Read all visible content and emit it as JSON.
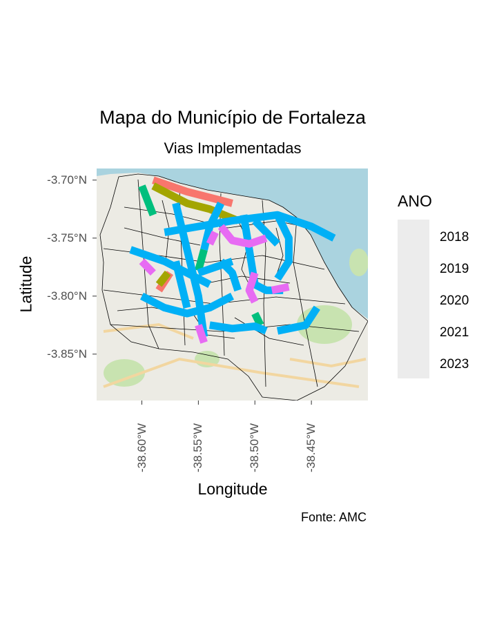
{
  "chart_data": {
    "type": "map",
    "title": "Mapa do Município de Fortaleza",
    "subtitle": "Vias Implementadas",
    "xlabel": "Longitude",
    "ylabel": "Latitude",
    "caption": "Fonte: AMC",
    "x_ticks": [
      "-38.60°W",
      "-38.55°W",
      "-38.50°W",
      "-38.45°W"
    ],
    "y_ticks": [
      "-3.70°N",
      "-3.75°N",
      "-3.80°N",
      "-3.85°N"
    ],
    "xlim": [
      -38.64,
      -38.4
    ],
    "ylim": [
      -3.89,
      -3.69
    ],
    "legend": {
      "title": "ANO",
      "position": "right"
    },
    "series": [
      {
        "name": "2018",
        "color": "#f8766d",
        "segments": [
          [
            [
              -38.59,
              -3.7
            ],
            [
              -38.56,
              -3.71
            ],
            [
              -38.52,
              -3.72
            ]
          ],
          [
            [
              -38.585,
              -3.795
            ],
            [
              -38.575,
              -3.78
            ]
          ]
        ]
      },
      {
        "name": "2019",
        "color": "#a3a500",
        "segments": [
          [
            [
              -38.59,
              -3.705
            ],
            [
              -38.56,
              -3.72
            ],
            [
              -38.54,
              -3.725
            ],
            [
              -38.515,
              -3.735
            ]
          ],
          [
            [
              -38.585,
              -3.79
            ],
            [
              -38.577,
              -3.78
            ]
          ]
        ]
      },
      {
        "name": "2020",
        "color": "#00bf7d",
        "segments": [
          [
            [
              -38.6,
              -3.705
            ],
            [
              -38.59,
              -3.73
            ]
          ],
          [
            [
              -38.55,
              -3.778
            ],
            [
              -38.545,
              -3.76
            ]
          ],
          [
            [
              -38.5,
              -3.815
            ],
            [
              -38.495,
              -3.825
            ]
          ]
        ]
      },
      {
        "name": "2021",
        "color": "#00b0f6",
        "segments": [
          [
            [
              -38.58,
              -3.745
            ],
            [
              -38.55,
              -3.74
            ],
            [
              -38.52,
              -3.735
            ],
            [
              -38.48,
              -3.73
            ],
            [
              -38.45,
              -3.74
            ],
            [
              -38.43,
              -3.75
            ]
          ],
          [
            [
              -38.57,
              -3.72
            ],
            [
              -38.56,
              -3.76
            ],
            [
              -38.55,
              -3.8
            ],
            [
              -38.545,
              -3.835
            ]
          ],
          [
            [
              -38.53,
              -3.72
            ],
            [
              -38.54,
              -3.74
            ],
            [
              -38.545,
              -3.76
            ]
          ],
          [
            [
              -38.51,
              -3.73
            ],
            [
              -38.505,
              -3.76
            ],
            [
              -38.5,
              -3.79
            ]
          ],
          [
            [
              -38.48,
              -3.73
            ],
            [
              -38.47,
              -3.75
            ],
            [
              -38.47,
              -3.77
            ],
            [
              -38.48,
              -3.785
            ]
          ],
          [
            [
              -38.61,
              -3.76
            ],
            [
              -38.58,
              -3.77
            ],
            [
              -38.56,
              -3.78
            ],
            [
              -38.54,
              -3.79
            ]
          ],
          [
            [
              -38.6,
              -3.8
            ],
            [
              -38.58,
              -3.81
            ],
            [
              -38.56,
              -3.815
            ],
            [
              -38.54,
              -3.81
            ],
            [
              -38.52,
              -3.8
            ]
          ],
          [
            [
              -38.54,
              -3.825
            ],
            [
              -38.52,
              -3.828
            ],
            [
              -38.5,
              -3.826
            ],
            [
              -38.49,
              -3.83
            ]
          ],
          [
            [
              -38.48,
              -3.83
            ],
            [
              -38.455,
              -3.825
            ],
            [
              -38.445,
              -3.81
            ]
          ],
          [
            [
              -38.53,
              -3.77
            ],
            [
              -38.52,
              -3.78
            ],
            [
              -38.515,
              -3.795
            ]
          ],
          [
            [
              -38.57,
              -3.77
            ],
            [
              -38.565,
              -3.79
            ],
            [
              -38.56,
              -3.81
            ]
          ],
          [
            [
              -38.5,
              -3.79
            ],
            [
              -38.49,
              -3.795
            ],
            [
              -38.475,
              -3.795
            ]
          ],
          [
            [
              -38.5,
              -3.735
            ],
            [
              -38.49,
              -3.745
            ],
            [
              -38.48,
              -3.755
            ]
          ],
          [
            [
              -38.55,
              -3.78
            ],
            [
              -38.535,
              -3.775
            ],
            [
              -38.52,
              -3.77
            ]
          ]
        ]
      },
      {
        "name": "2023",
        "color": "#e76bf3",
        "segments": [
          [
            [
              -38.53,
              -3.74
            ],
            [
              -38.52,
              -3.752
            ],
            [
              -38.505,
              -3.755
            ],
            [
              -38.49,
              -3.75
            ]
          ],
          [
            [
              -38.5,
              -3.78
            ],
            [
              -38.505,
              -3.795
            ],
            [
              -38.5,
              -3.805
            ]
          ],
          [
            [
              -38.485,
              -3.795
            ],
            [
              -38.47,
              -3.792
            ]
          ],
          [
            [
              -38.55,
              -3.825
            ],
            [
              -38.545,
              -3.84
            ]
          ],
          [
            [
              -38.6,
              -3.77
            ],
            [
              -38.59,
              -3.78
            ]
          ],
          [
            [
              -38.54,
              -3.755
            ],
            [
              -38.535,
              -3.745
            ]
          ]
        ]
      }
    ]
  },
  "basemap": {
    "land_color": "#ecebe4",
    "sea_color": "#aad3df",
    "park_color": "#c8e3b0",
    "road_color": "#f2d6a0",
    "boundary_color": "#000000"
  }
}
